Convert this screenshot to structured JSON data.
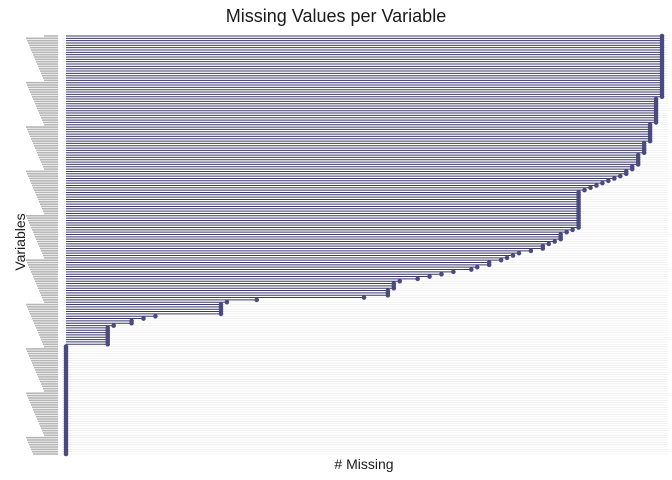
{
  "chart_data": {
    "type": "lollipop",
    "orientation": "horizontal",
    "title": "Missing Values per Variable",
    "xlabel": "# Missing",
    "ylabel": "Variables",
    "x_tick_labels_visible": false,
    "y_tick_labels_visible": false,
    "grid": "horizontal",
    "colors": {
      "stem": "#3a3a6a",
      "point": "#4a4a80",
      "grid": "#ebebeb"
    },
    "values": [
      100,
      100,
      100,
      100,
      100,
      100,
      100,
      100,
      100,
      100,
      100,
      100,
      100,
      100,
      100,
      100,
      100,
      100,
      100,
      100,
      100,
      100,
      100,
      100,
      100,
      100,
      100,
      99,
      99,
      99,
      99,
      99,
      99,
      99,
      99,
      99,
      99,
      99,
      98,
      98,
      98,
      98,
      98,
      98,
      98,
      98,
      97,
      97,
      97,
      97,
      97,
      96,
      96,
      96,
      96,
      96,
      95,
      95,
      94,
      94,
      93,
      92,
      91,
      90,
      89,
      88,
      87,
      86,
      86,
      86,
      86,
      86,
      86,
      86,
      86,
      86,
      86,
      86,
      86,
      86,
      86,
      86,
      86,
      85,
      84,
      83,
      83,
      83,
      82,
      81,
      80,
      80,
      78,
      76,
      75,
      74,
      73,
      71,
      71,
      69,
      68,
      65,
      63,
      61,
      59,
      56,
      55,
      55,
      55,
      54,
      54,
      54,
      50,
      32,
      27,
      26,
      26,
      26,
      26,
      26,
      15,
      13,
      11,
      11,
      8,
      7,
      7,
      7,
      7,
      7,
      7,
      7,
      7,
      0,
      0,
      0,
      0,
      0,
      0,
      0,
      0,
      0,
      0,
      0,
      0,
      0,
      0,
      0,
      0,
      0,
      0,
      0,
      0,
      0,
      0,
      0,
      0,
      0,
      0,
      0,
      0,
      0,
      0,
      0,
      0,
      0,
      0,
      0,
      0,
      0,
      0,
      0,
      0,
      0,
      0,
      0,
      0,
      0,
      0,
      0
    ]
  }
}
